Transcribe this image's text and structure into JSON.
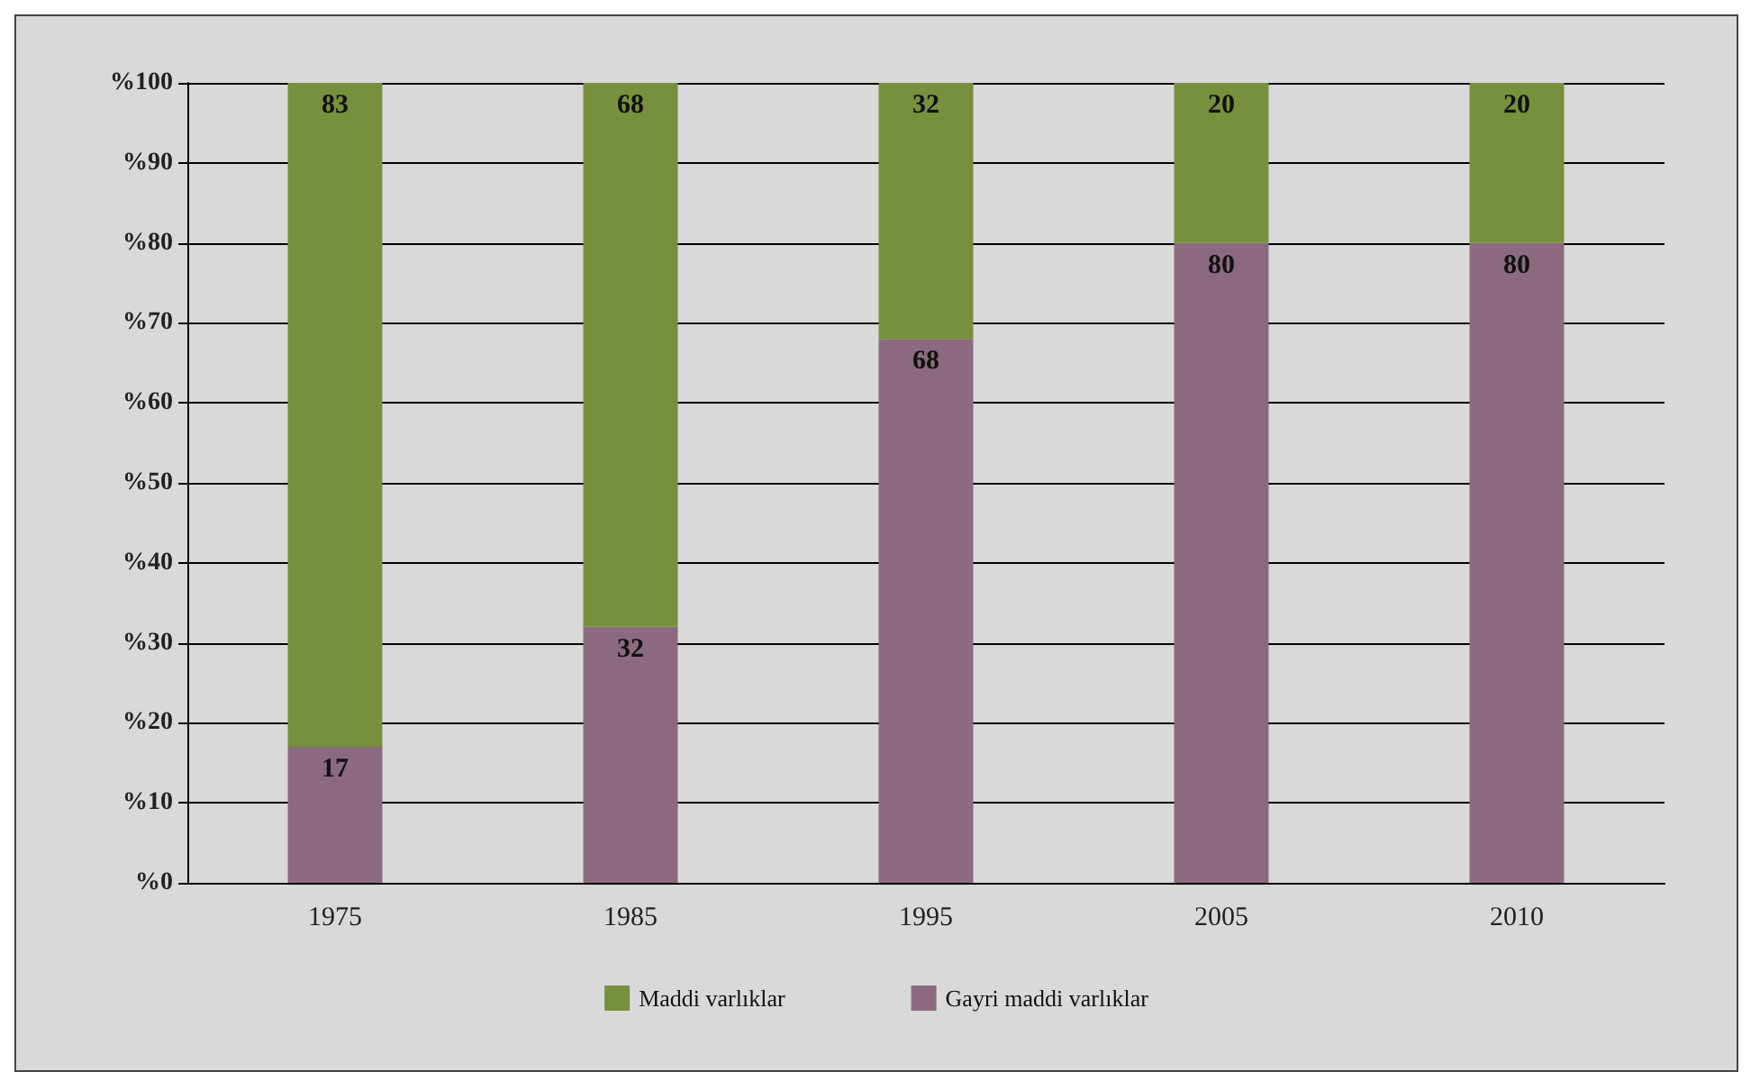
{
  "chart_data": {
    "type": "bar",
    "stacked": true,
    "categories": [
      "1975",
      "1985",
      "1995",
      "2005",
      "2010"
    ],
    "series": [
      {
        "name": "Gayri maddi varlıklar",
        "color": "#8b6a7f",
        "values": [
          17,
          32,
          68,
          80,
          80
        ]
      },
      {
        "name": "Maddi varlıklar",
        "color": "#77903d",
        "values": [
          83,
          68,
          32,
          20,
          20
        ]
      }
    ],
    "ylim": [
      0,
      100
    ],
    "yticks": [
      {
        "value": 0,
        "label": "%0"
      },
      {
        "value": 10,
        "label": "%10"
      },
      {
        "value": 20,
        "label": "%20"
      },
      {
        "value": 30,
        "label": "%30"
      },
      {
        "value": 40,
        "label": "%40"
      },
      {
        "value": 50,
        "label": "%50"
      },
      {
        "value": 60,
        "label": "%60"
      },
      {
        "value": 70,
        "label": "%70"
      },
      {
        "value": 80,
        "label": "%80"
      },
      {
        "value": 90,
        "label": "%90"
      },
      {
        "value": 100,
        "label": "%100"
      }
    ],
    "grid": "y",
    "legend": "bottom",
    "data_labels": true
  }
}
